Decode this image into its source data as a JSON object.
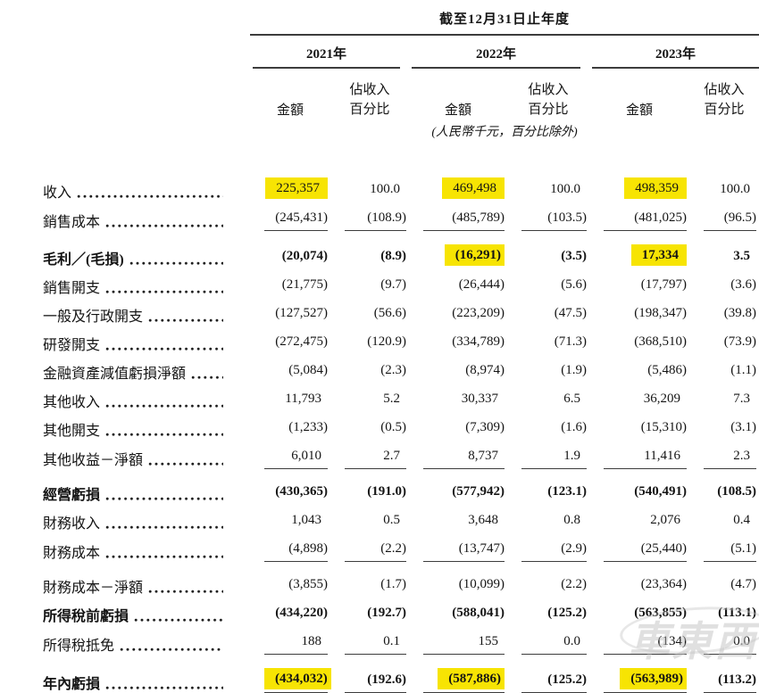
{
  "page": {
    "period_header": "截至12月31日止年度",
    "unit_note": "(人民幣千元，百分比除外)",
    "watermark_text": "車東西"
  },
  "colors": {
    "highlight": "#F7E403",
    "text": "#141414",
    "rule": "#3C3C3C"
  },
  "table": {
    "year_groups": [
      "2021年",
      "2022年",
      "2023年"
    ],
    "subheaders": {
      "amount": "金額",
      "pct_line1": "佔收入",
      "pct_line2": "百分比"
    },
    "rows": [
      {
        "label": "收入",
        "bold": false,
        "gap": false,
        "rule": false,
        "values": [
          "225,357",
          "100.0",
          "469,498",
          "100.0",
          "498,359",
          "100.0"
        ],
        "hl": [
          true,
          false,
          true,
          false,
          true,
          false
        ]
      },
      {
        "label": "銷售成本",
        "bold": false,
        "gap": false,
        "rule": true,
        "values": [
          "(245,431)",
          "(108.9)",
          "(485,789)",
          "(103.5)",
          "(481,025)",
          "(96.5)"
        ],
        "hl": [
          false,
          false,
          false,
          false,
          false,
          false
        ]
      },
      {
        "label": "毛利／(毛損)",
        "bold": true,
        "gap": true,
        "rule": false,
        "values": [
          "(20,074)",
          "(8.9)",
          "(16,291)",
          "(3.5)",
          "17,334",
          "3.5"
        ],
        "hl": [
          false,
          false,
          true,
          false,
          true,
          false
        ]
      },
      {
        "label": "銷售開支",
        "bold": false,
        "gap": false,
        "rule": false,
        "values": [
          "(21,775)",
          "(9.7)",
          "(26,444)",
          "(5.6)",
          "(17,797)",
          "(3.6)"
        ],
        "hl": [
          false,
          false,
          false,
          false,
          false,
          false
        ]
      },
      {
        "label": "一般及行政開支",
        "bold": false,
        "gap": false,
        "rule": false,
        "values": [
          "(127,527)",
          "(56.6)",
          "(223,209)",
          "(47.5)",
          "(198,347)",
          "(39.8)"
        ],
        "hl": [
          false,
          false,
          false,
          false,
          false,
          false
        ]
      },
      {
        "label": "研發開支",
        "bold": false,
        "gap": false,
        "rule": false,
        "values": [
          "(272,475)",
          "(120.9)",
          "(334,789)",
          "(71.3)",
          "(368,510)",
          "(73.9)"
        ],
        "hl": [
          false,
          false,
          false,
          false,
          false,
          false
        ]
      },
      {
        "label": "金融資產減值虧損淨額",
        "bold": false,
        "gap": false,
        "rule": false,
        "values": [
          "(5,084)",
          "(2.3)",
          "(8,974)",
          "(1.9)",
          "(5,486)",
          "(1.1)"
        ],
        "hl": [
          false,
          false,
          false,
          false,
          false,
          false
        ]
      },
      {
        "label": "其他收入",
        "bold": false,
        "gap": false,
        "rule": false,
        "values": [
          "11,793",
          "5.2",
          "30,337",
          "6.5",
          "36,209",
          "7.3"
        ],
        "hl": [
          false,
          false,
          false,
          false,
          false,
          false
        ]
      },
      {
        "label": "其他開支",
        "bold": false,
        "gap": false,
        "rule": false,
        "values": [
          "(1,233)",
          "(0.5)",
          "(7,309)",
          "(1.6)",
          "(15,310)",
          "(3.1)"
        ],
        "hl": [
          false,
          false,
          false,
          false,
          false,
          false
        ]
      },
      {
        "label": "其他收益－淨額",
        "bold": false,
        "gap": false,
        "rule": true,
        "values": [
          "6,010",
          "2.7",
          "8,737",
          "1.9",
          "11,416",
          "2.3"
        ],
        "hl": [
          false,
          false,
          false,
          false,
          false,
          false
        ]
      },
      {
        "label": "經營虧損",
        "bold": true,
        "gap": true,
        "rule": false,
        "values": [
          "(430,365)",
          "(191.0)",
          "(577,942)",
          "(123.1)",
          "(540,491)",
          "(108.5)"
        ],
        "hl": [
          false,
          false,
          false,
          false,
          false,
          false
        ]
      },
      {
        "label": "財務收入",
        "bold": false,
        "gap": false,
        "rule": false,
        "values": [
          "1,043",
          "0.5",
          "3,648",
          "0.8",
          "2,076",
          "0.4"
        ],
        "hl": [
          false,
          false,
          false,
          false,
          false,
          false
        ]
      },
      {
        "label": "財務成本",
        "bold": false,
        "gap": false,
        "rule": true,
        "values": [
          "(4,898)",
          "(2.2)",
          "(13,747)",
          "(2.9)",
          "(25,440)",
          "(5.1)"
        ],
        "hl": [
          false,
          false,
          false,
          false,
          false,
          false
        ]
      },
      {
        "label": "財務成本－淨額",
        "bold": false,
        "gap": true,
        "rule": false,
        "values": [
          "(3,855)",
          "(1.7)",
          "(10,099)",
          "(2.2)",
          "(23,364)",
          "(4.7)"
        ],
        "hl": [
          false,
          false,
          false,
          false,
          false,
          false
        ]
      },
      {
        "label": "所得稅前虧損",
        "bold": true,
        "gap": false,
        "rule": false,
        "values": [
          "(434,220)",
          "(192.7)",
          "(588,041)",
          "(125.2)",
          "(563,855)",
          "(113.1)"
        ],
        "hl": [
          false,
          false,
          false,
          false,
          false,
          false
        ]
      },
      {
        "label": "所得稅抵免",
        "bold": false,
        "gap": false,
        "rule": true,
        "values": [
          "188",
          "0.1",
          "155",
          "0.0",
          "(134)",
          "0.0"
        ],
        "hl": [
          false,
          false,
          false,
          false,
          false,
          false
        ]
      },
      {
        "label": "年內虧損",
        "bold": true,
        "gap": true,
        "rule": true,
        "values": [
          "(434,032)",
          "(192.6)",
          "(587,886)",
          "(125.2)",
          "(563,989)",
          "(113.2)"
        ],
        "hl": [
          true,
          false,
          true,
          false,
          true,
          false
        ]
      }
    ]
  }
}
